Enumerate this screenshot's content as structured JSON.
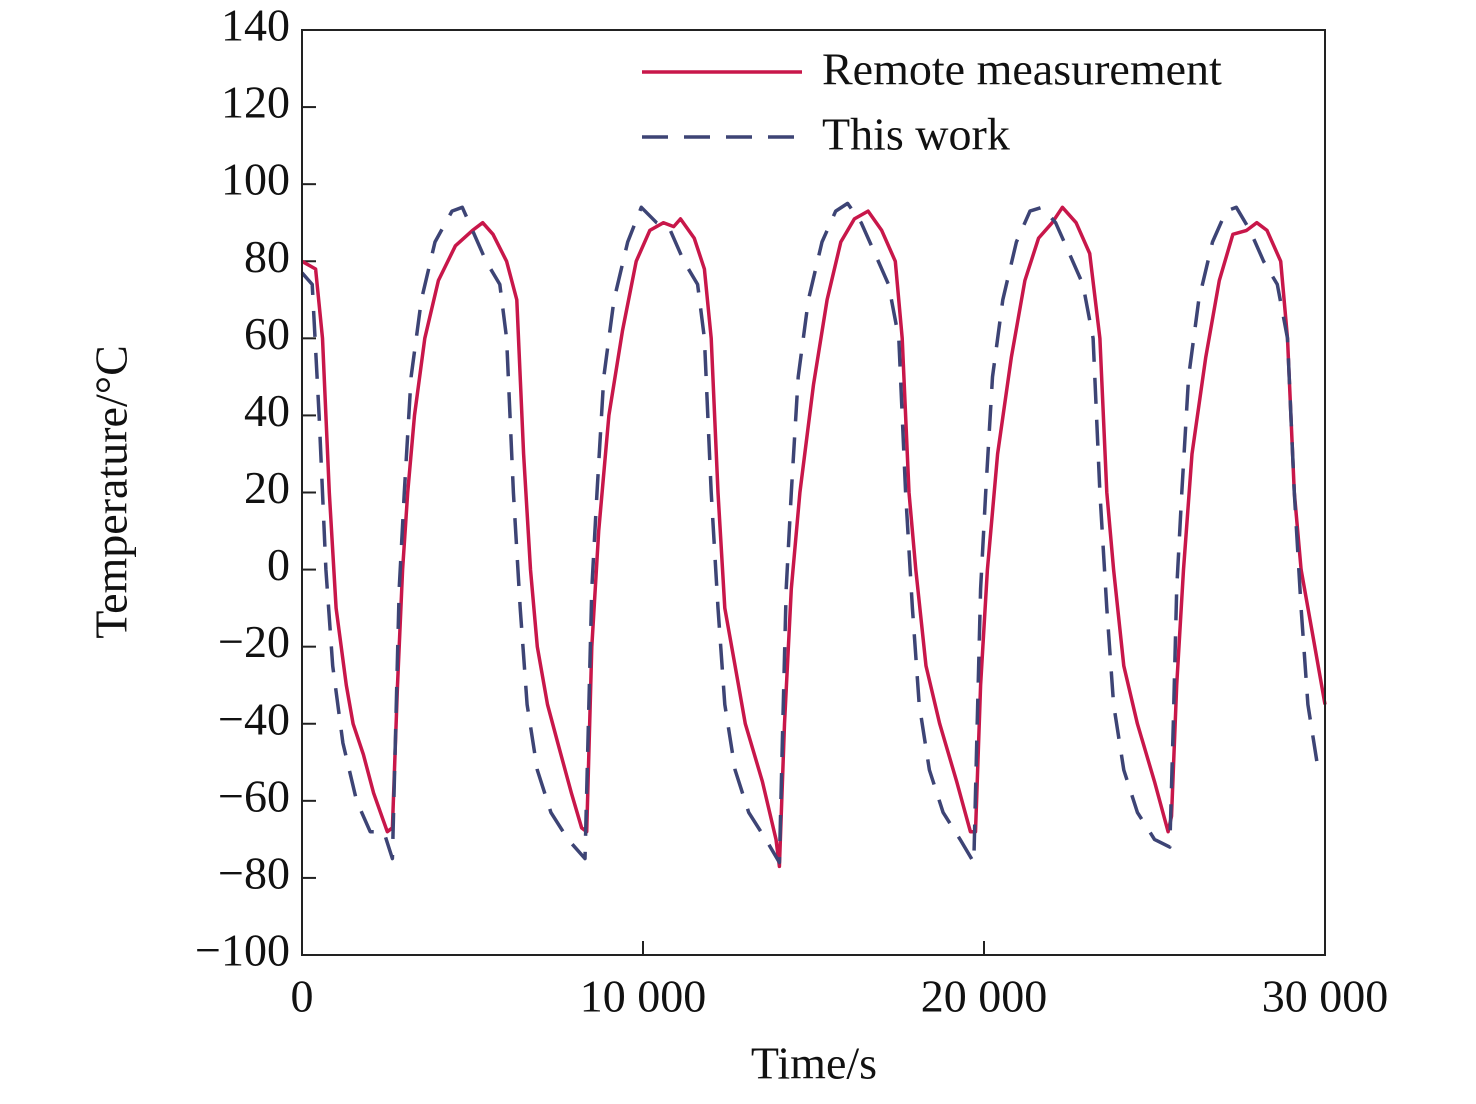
{
  "chart_data": {
    "type": "line",
    "xlabel": "Time/s",
    "ylabel": "Temperature/°C",
    "xlim": [
      0,
      30000
    ],
    "xticks": [
      0,
      {
        "value": 10000,
        "label": "10 000"
      },
      {
        "value": 20000,
        "label": "20 000"
      },
      {
        "value": 30000,
        "label": "30 000"
      }
    ],
    "ylim": [
      -100,
      140
    ],
    "yticks": [
      {
        "value": -100,
        "label": "−100"
      },
      {
        "value": -80,
        "label": "−80"
      },
      {
        "value": -60,
        "label": "−60"
      },
      {
        "value": -40,
        "label": "−40"
      },
      {
        "value": -20,
        "label": "−20"
      },
      0,
      20,
      40,
      60,
      80,
      100,
      120,
      140
    ],
    "legend": "upper right",
    "series": [
      {
        "name": "Remote measurement",
        "color": "#c8174a",
        "dash": "solid",
        "x": [
          0,
          400,
          600,
          800,
          1000,
          1300,
          1500,
          1800,
          2100,
          2500,
          2650,
          2800,
          2950,
          3100,
          3300,
          3600,
          4000,
          4500,
          5000,
          5300,
          5600,
          6000,
          6300,
          6500,
          6700,
          6900,
          7200,
          7500,
          7900,
          8200,
          8350,
          8500,
          8700,
          9000,
          9400,
          9800,
          10200,
          10600,
          10900,
          11100,
          11500,
          11800,
          12000,
          12200,
          12400,
          12700,
          13000,
          13500,
          13900,
          14000,
          14150,
          14350,
          14600,
          15000,
          15400,
          15800,
          16200,
          16600,
          17000,
          17400,
          17600,
          17800,
          18000,
          18300,
          18700,
          19200,
          19600,
          19750,
          19900,
          20100,
          20400,
          20800,
          21200,
          21600,
          22000,
          22300,
          22700,
          23100,
          23400,
          23600,
          23800,
          24100,
          24500,
          25000,
          25400,
          25500,
          25650,
          25850,
          26100,
          26500,
          26900,
          27300,
          27700,
          28000,
          28300,
          28700,
          28900,
          29100,
          29300,
          29600,
          30000
        ],
        "values": [
          80,
          78,
          60,
          20,
          -10,
          -30,
          -40,
          -48,
          -58,
          -68,
          -67,
          -30,
          0,
          20,
          40,
          60,
          75,
          84,
          88,
          90,
          87,
          80,
          70,
          30,
          0,
          -20,
          -35,
          -45,
          -58,
          -67,
          -68,
          -20,
          10,
          40,
          62,
          80,
          88,
          90,
          89,
          91,
          86,
          78,
          60,
          20,
          -10,
          -25,
          -40,
          -55,
          -70,
          -77,
          -40,
          -5,
          20,
          48,
          70,
          85,
          91,
          93,
          88,
          80,
          60,
          20,
          0,
          -25,
          -40,
          -55,
          -68,
          -68,
          -30,
          0,
          30,
          55,
          75,
          86,
          90,
          94,
          90,
          82,
          60,
          20,
          0,
          -25,
          -40,
          -55,
          -68,
          -64,
          -30,
          0,
          30,
          55,
          75,
          87,
          88,
          90,
          88,
          80,
          60,
          20,
          0,
          -15,
          -35
        ]
      },
      {
        "name": "This work",
        "color": "#3d4475",
        "dash": "dashed",
        "x": [
          0,
          300,
          500,
          700,
          900,
          1200,
          1600,
          2000,
          2400,
          2650,
          2750,
          2850,
          3000,
          3200,
          3500,
          3900,
          4400,
          4700,
          5000,
          5400,
          5800,
          6000,
          6200,
          6400,
          6600,
          6900,
          7300,
          7800,
          8300,
          8400,
          8500,
          8650,
          8850,
          9150,
          9550,
          9950,
          10400,
          10800,
          11200,
          11600,
          11800,
          12000,
          12200,
          12400,
          12700,
          13100,
          13600,
          14000,
          14100,
          14200,
          14350,
          14550,
          14850,
          15250,
          15650,
          16000,
          16400,
          16800,
          17200,
          17500,
          17700,
          17900,
          18100,
          18400,
          18800,
          19300,
          19700,
          19800,
          19900,
          20050,
          20250,
          20550,
          20950,
          21350,
          21700,
          22100,
          22500,
          22900,
          23200,
          23400,
          23600,
          23800,
          24100,
          24500,
          25000,
          25450,
          25550,
          25650,
          25800,
          26000,
          26300,
          26700,
          27100,
          27400,
          27800,
          28200,
          28600,
          28900,
          29100,
          29300,
          29500,
          29800,
          30000
        ],
        "values": [
          77,
          74,
          40,
          0,
          -25,
          -45,
          -60,
          -68,
          -68,
          -75,
          -40,
          -5,
          20,
          50,
          70,
          85,
          93,
          94,
          88,
          80,
          74,
          60,
          20,
          -10,
          -35,
          -52,
          -63,
          -70,
          -75,
          -40,
          -5,
          20,
          50,
          70,
          85,
          94,
          90,
          88,
          80,
          74,
          60,
          20,
          -10,
          -35,
          -52,
          -63,
          -70,
          -76,
          -40,
          -5,
          20,
          50,
          70,
          85,
          93,
          95,
          90,
          82,
          74,
          60,
          20,
          -10,
          -35,
          -52,
          -63,
          -70,
          -76,
          -40,
          -5,
          20,
          50,
          70,
          85,
          93,
          94,
          90,
          82,
          74,
          60,
          20,
          -10,
          -35,
          -52,
          -63,
          -70,
          -72,
          -40,
          -5,
          20,
          50,
          70,
          85,
          93,
          94,
          88,
          80,
          74,
          60,
          20,
          -10,
          -35,
          -52,
          -52
        ]
      }
    ]
  }
}
